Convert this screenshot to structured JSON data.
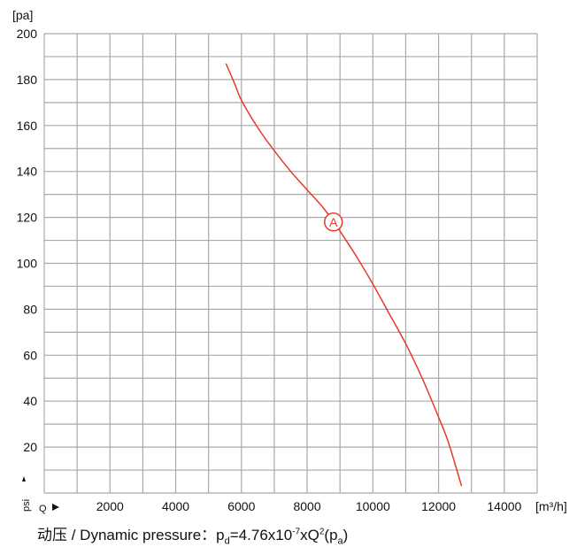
{
  "chart_data": {
    "type": "line",
    "y_unit": "[pa]",
    "x_unit": "[m³/h]",
    "y_axis_mark": "psi",
    "x_axis_mark": "Q",
    "xlim": [
      0,
      15000
    ],
    "ylim": [
      0,
      200
    ],
    "x_ticks": [
      2000,
      4000,
      6000,
      8000,
      10000,
      12000,
      14000
    ],
    "y_ticks": [
      20,
      40,
      60,
      80,
      100,
      120,
      140,
      160,
      180,
      200
    ],
    "grid": true,
    "series": [
      {
        "color": "#e8372c",
        "points": [
          [
            5530,
            187
          ],
          [
            5800,
            178
          ],
          [
            6000,
            171
          ],
          [
            6500,
            159
          ],
          [
            7000,
            149
          ],
          [
            7500,
            140
          ],
          [
            8000,
            132
          ],
          [
            8500,
            124
          ],
          [
            8900,
            116
          ],
          [
            9000,
            114
          ],
          [
            9500,
            103
          ],
          [
            10000,
            91
          ],
          [
            10500,
            78
          ],
          [
            11000,
            65
          ],
          [
            11500,
            50
          ],
          [
            12000,
            33
          ],
          [
            12300,
            22
          ],
          [
            12700,
            3
          ]
        ]
      }
    ],
    "annotations": [
      {
        "label": "A",
        "x": 8800,
        "y": 118,
        "color": "#e8372c"
      }
    ]
  },
  "caption": {
    "prefix": "动压 / Dynamic pressure：",
    "p": "p",
    "p_sub": "d",
    "eq": "=4.76x10",
    "exp": "-7",
    "xq": "xQ",
    "q_exp": "2",
    "open": "(p",
    "unit_sub": "a",
    "close": ")"
  }
}
